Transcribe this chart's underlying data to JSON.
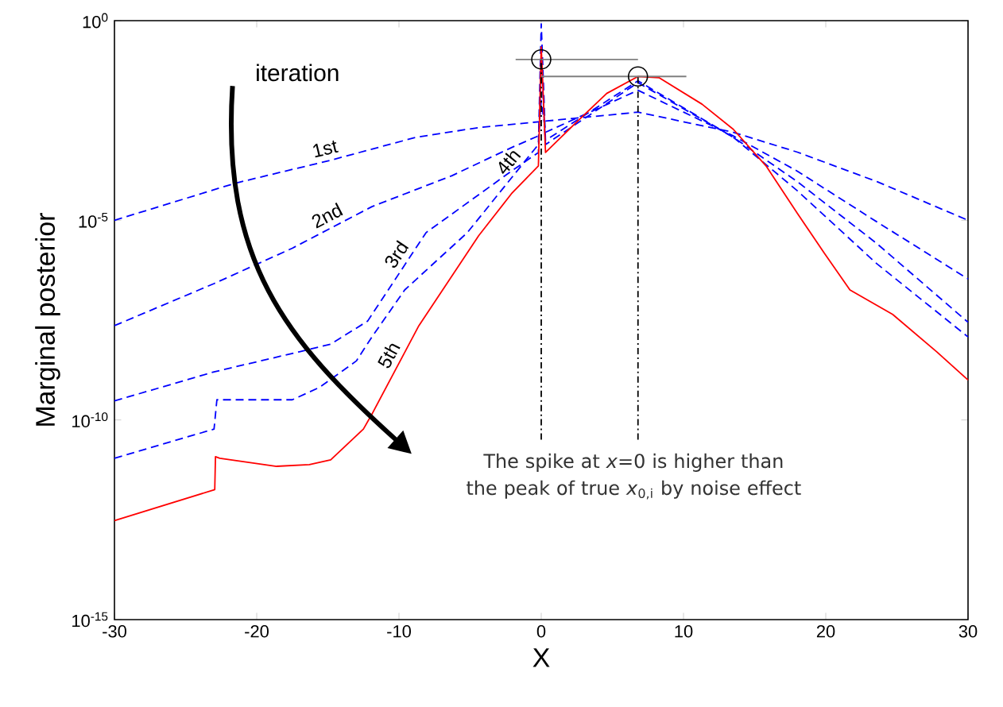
{
  "chart_data": {
    "type": "line",
    "xlabel": "X",
    "ylabel": "Marginal posterior",
    "log": "y",
    "grid": false,
    "xlim": [
      -30,
      30
    ],
    "xticks": [
      -30,
      -20,
      -10,
      0,
      10,
      20,
      30
    ],
    "ylim": [
      1e-15,
      1
    ],
    "yticks": [
      {
        "value": 1e-15,
        "label": "10$^{-15}$"
      },
      {
        "value": 1e-10,
        "label": "10$^{-10}$"
      },
      {
        "value": 1e-05,
        "label": "10$^{-5}$"
      },
      {
        "value": 1,
        "label": "10$^{0}$"
      }
    ],
    "annotations": [
      "iteration",
      "The spike at *x*=0 is higher than the peak of true *x*$_{0,i}$ by noise effect"
    ],
    "series": [
      {
        "name": "1st",
        "color": "#0000ff",
        "line_style": "dashed",
        "x": [
          -30,
          -21.5,
          -14.8,
          -8.8,
          -4.4,
          0.1,
          6.8,
          13.5,
          18,
          23.6,
          30
        ],
        "values": [
          1e-05,
          8.5e-05,
          0.00032,
          0.0012,
          0.0021,
          0.003,
          0.0051,
          0.0016,
          0.00051,
          9.3e-05,
          1e-05
        ]
      },
      {
        "name": "2nd",
        "color": "#0000ff",
        "line_style": "dashed",
        "x": [
          -30,
          -23,
          -17.5,
          -11.9,
          -6.3,
          -2.1,
          -0.2,
          0,
          0.3,
          6.8,
          13.5,
          18,
          23.6,
          30
        ],
        "values": [
          2.3e-08,
          2.6e-07,
          2e-06,
          2.2e-05,
          0.00013,
          0.00066,
          0.0013,
          0.01,
          0.0016,
          0.018,
          0.0013,
          0.00017,
          9.1e-06,
          3.4e-07
        ]
      },
      {
        "name": "3rd",
        "color": "#0000ff",
        "line_style": "dashed",
        "x": [
          -30,
          -23,
          -17,
          -14.8,
          -12.2,
          -8.1,
          -2.1,
          -0.2,
          0,
          0.3,
          6.8,
          13.5,
          18,
          23.6,
          30
        ],
        "values": [
          3e-10,
          1.6e-09,
          5.1e-09,
          7.9e-09,
          3e-08,
          4.9e-06,
          0.00017,
          0.0005,
          0.1,
          0.00079,
          0.028,
          0.0012,
          9.3e-05,
          2.6e-06,
          2.8e-08
        ]
      },
      {
        "name": "4th",
        "color": "#0000ff",
        "line_style": "dashed",
        "x": [
          -30,
          -23,
          -22.8,
          -20.8,
          -17.5,
          -15.6,
          -13,
          -11.9,
          -9.6,
          -5.2,
          -0.2,
          0,
          0.3,
          6.8,
          13.5,
          18,
          23.6,
          30
        ],
        "values": [
          1.1e-11,
          5.9e-11,
          3.2e-10,
          3.2e-10,
          3.2e-10,
          6.5e-10,
          3e-09,
          1.2e-08,
          1.8e-07,
          4.9e-06,
          0.00079,
          0.83,
          0.001,
          0.031,
          0.0012,
          5.5e-05,
          8.1e-07,
          1.2e-08
        ]
      },
      {
        "name": "5th",
        "color": "#ff0000",
        "line_style": "solid",
        "x": [
          -30,
          -22.95,
          -22.9,
          -22.6,
          -18.6,
          -16.3,
          -14.8,
          -12.5,
          -11.9,
          -8.6,
          -4.4,
          -2.1,
          -0.2,
          0,
          0.3,
          2.3,
          4.6,
          6.8,
          8.3,
          11.3,
          13.5,
          15.8,
          18,
          19.9,
          21.7,
          24.7,
          27.8,
          30
        ],
        "values": [
          3e-13,
          1.8e-12,
          1.2e-11,
          1.1e-11,
          6.9e-12,
          7.6e-12,
          1e-11,
          5.9e-11,
          1.4e-10,
          2.3e-08,
          4.1e-06,
          4.6e-05,
          0.00023,
          0.22,
          0.0005,
          0.0025,
          0.015,
          0.04,
          0.037,
          0.0081,
          0.0019,
          0.00023,
          1.5e-05,
          1.5e-06,
          1.8e-07,
          4.4e-08,
          5.1e-09,
          1e-09
        ]
      },
      {
        "type": "line",
        "color": "#808080",
        "line_style": "solid",
        "x": [
          -1.8,
          6.8
        ],
        "values": [
          0.107,
          0.107
        ]
      },
      {
        "type": "line",
        "color": "#808080",
        "line_style": "solid",
        "x": [
          0,
          10.2
        ],
        "values": [
          0.04,
          0.04
        ]
      },
      {
        "type": "line",
        "color": "#000000",
        "line_style": "dashdot",
        "x": [
          0,
          0
        ],
        "values": [
          3.2e-11,
          0.107
        ]
      },
      {
        "type": "line",
        "color": "#000000",
        "line_style": "dashdot",
        "x": [
          6.8,
          6.8
        ],
        "values": [
          3.2e-11,
          0.04
        ]
      },
      {
        "type": "scatter",
        "color": "#000000",
        "marker": "circle",
        "x": [
          0,
          6.8
        ],
        "values": [
          0.107,
          0.04
        ]
      }
    ]
  }
}
